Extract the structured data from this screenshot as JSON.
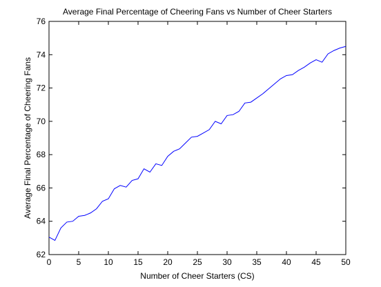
{
  "chart_data": {
    "type": "line",
    "title": "Average Final Percentage of Cheering Fans vs Number of Cheer Starters",
    "xlabel": "Number of Cheer Starters (CS)",
    "ylabel": "Average Final Percentage of Cheering Fans",
    "xlim": [
      0,
      50
    ],
    "ylim": [
      62,
      76
    ],
    "xticks": [
      0,
      5,
      10,
      15,
      20,
      25,
      30,
      35,
      40,
      45,
      50
    ],
    "yticks": [
      62,
      64,
      66,
      68,
      70,
      72,
      74,
      76
    ],
    "grid": false,
    "line_color": "#0000ff",
    "series": [
      {
        "x": [
          0,
          1,
          2,
          3,
          4,
          5,
          6,
          7,
          8,
          9,
          10,
          11,
          12,
          13,
          14,
          15,
          16,
          17,
          18,
          19,
          20,
          21,
          22,
          23,
          24,
          25,
          26,
          27,
          28,
          29,
          30,
          31,
          32,
          33,
          34,
          35,
          36,
          37,
          38,
          39,
          40,
          41,
          42,
          43,
          44,
          45,
          46,
          47,
          48,
          49,
          50
        ],
        "values": [
          63.05,
          62.85,
          63.6,
          63.95,
          64.0,
          64.3,
          64.35,
          64.5,
          64.75,
          65.2,
          65.35,
          65.95,
          66.15,
          66.05,
          66.45,
          66.55,
          67.15,
          66.95,
          67.45,
          67.35,
          67.9,
          68.2,
          68.35,
          68.7,
          69.05,
          69.1,
          69.3,
          69.5,
          70.0,
          69.85,
          70.35,
          70.4,
          70.6,
          71.1,
          71.15,
          71.4,
          71.65,
          71.95,
          72.25,
          72.55,
          72.75,
          72.8,
          73.05,
          73.25,
          73.5,
          73.7,
          73.55,
          74.05,
          74.25,
          74.4,
          74.5
        ]
      }
    ]
  }
}
